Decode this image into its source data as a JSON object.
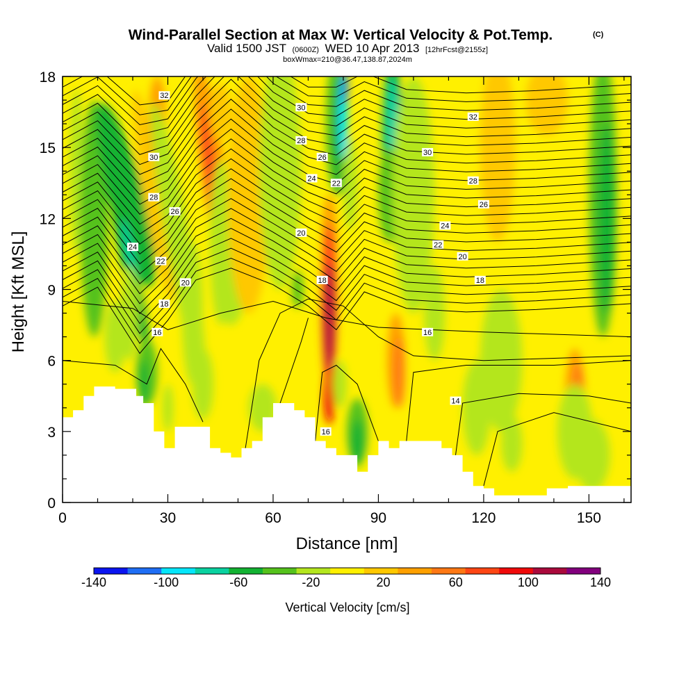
{
  "header": {
    "title": "Wind-Parallel Section at Max W: Vertical Velocity & Pot.Temp.",
    "title_mark": "(C)",
    "valid_a": "Valid 1500 JST",
    "valid_b": "(0600Z)",
    "valid_c": "WED 10 Apr 2013",
    "valid_d": "[12hrFcst@2155z]",
    "box": "boxWmax=210@36.47,138.87,2024m"
  },
  "chart_data": {
    "type": "heatmap",
    "xlabel": "Distance [nm]",
    "ylabel": "Height [Kft MSL]",
    "xlim": [
      0,
      162
    ],
    "ylim": [
      0,
      18
    ],
    "xticks": [
      "0",
      "30",
      "60",
      "90",
      "120",
      "150"
    ],
    "yticks": [
      "0",
      "3",
      "6",
      "9",
      "12",
      "15",
      "18"
    ],
    "colorbar": {
      "title": "Vertical Velocity [cm/s]",
      "labels": [
        "-140",
        "-100",
        "-60",
        "-20",
        "20",
        "60",
        "100",
        "140"
      ],
      "colors": [
        "#0a14f0",
        "#1f6ef5",
        "#05e6fa",
        "#0ad2a0",
        "#12b232",
        "#55c21c",
        "#b4e61e",
        "#fff000",
        "#ffc800",
        "#ffa000",
        "#ff7814",
        "#ff4614",
        "#f00a0a",
        "#aa0a3c",
        "#82007d"
      ]
    },
    "terrain_kft": [
      [
        0,
        3.6
      ],
      [
        3,
        3.6
      ],
      [
        3,
        3.9
      ],
      [
        6,
        3.9
      ],
      [
        6,
        4.5
      ],
      [
        9,
        4.5
      ],
      [
        9,
        4.9
      ],
      [
        15,
        4.9
      ],
      [
        15,
        4.8
      ],
      [
        21,
        4.8
      ],
      [
        21,
        4.5
      ],
      [
        23,
        4.5
      ],
      [
        23,
        4.2
      ],
      [
        26,
        4.2
      ],
      [
        26,
        3
      ],
      [
        29,
        3
      ],
      [
        29,
        2.3
      ],
      [
        32,
        2.3
      ],
      [
        32,
        3.2
      ],
      [
        42,
        3.2
      ],
      [
        42,
        2.3
      ],
      [
        45,
        2.3
      ],
      [
        45,
        2.1
      ],
      [
        48,
        2.1
      ],
      [
        48,
        1.9
      ],
      [
        51,
        1.9
      ],
      [
        51,
        2.3
      ],
      [
        54,
        2.3
      ],
      [
        54,
        2.6
      ],
      [
        57,
        2.6
      ],
      [
        57,
        3.6
      ],
      [
        60,
        3.6
      ],
      [
        60,
        4.2
      ],
      [
        66,
        4.2
      ],
      [
        66,
        3.9
      ],
      [
        69,
        3.9
      ],
      [
        69,
        3.6
      ],
      [
        72,
        3.6
      ],
      [
        72,
        2.6
      ],
      [
        75,
        2.6
      ],
      [
        75,
        2.3
      ],
      [
        78,
        2.3
      ],
      [
        78,
        2
      ],
      [
        84,
        2
      ],
      [
        84,
        1.3
      ],
      [
        87,
        1.3
      ],
      [
        87,
        2
      ],
      [
        90,
        2
      ],
      [
        90,
        2.6
      ],
      [
        93,
        2.6
      ],
      [
        93,
        2.3
      ],
      [
        96,
        2.3
      ],
      [
        96,
        2.6
      ],
      [
        108,
        2.6
      ],
      [
        108,
        2.3
      ],
      [
        111,
        2.3
      ],
      [
        111,
        2
      ],
      [
        114,
        2
      ],
      [
        114,
        1.3
      ],
      [
        117,
        1.3
      ],
      [
        117,
        0.7
      ],
      [
        120,
        0.7
      ],
      [
        120,
        0.6
      ],
      [
        123,
        0.6
      ],
      [
        123,
        0.3
      ],
      [
        138,
        0.3
      ],
      [
        138,
        0.6
      ],
      [
        144,
        0.6
      ],
      [
        144,
        0.7
      ],
      [
        162,
        0.7
      ]
    ],
    "isentropes_label_values": [
      "32",
      "30",
      "28",
      "26",
      "24",
      "22",
      "20",
      "18",
      "16",
      "14"
    ],
    "isentrope_labels": [
      {
        "text": "32",
        "x": 29,
        "y": 17.2
      },
      {
        "text": "30",
        "x": 26,
        "y": 14.6
      },
      {
        "text": "28",
        "x": 26,
        "y": 12.9
      },
      {
        "text": "26",
        "x": 32,
        "y": 12.3
      },
      {
        "text": "24",
        "x": 20,
        "y": 10.8
      },
      {
        "text": "22",
        "x": 28,
        "y": 10.2
      },
      {
        "text": "20",
        "x": 35,
        "y": 9.3
      },
      {
        "text": "18",
        "x": 29,
        "y": 8.4
      },
      {
        "text": "16",
        "x": 27,
        "y": 7.2
      },
      {
        "text": "30",
        "x": 68,
        "y": 16.7
      },
      {
        "text": "28",
        "x": 68,
        "y": 15.3
      },
      {
        "text": "26",
        "x": 74,
        "y": 14.6
      },
      {
        "text": "24",
        "x": 71,
        "y": 13.7
      },
      {
        "text": "22",
        "x": 78,
        "y": 13.5
      },
      {
        "text": "20",
        "x": 68,
        "y": 11.4
      },
      {
        "text": "18",
        "x": 74,
        "y": 9.4
      },
      {
        "text": "16",
        "x": 75,
        "y": 3
      },
      {
        "text": "32",
        "x": 117,
        "y": 16.3
      },
      {
        "text": "30",
        "x": 104,
        "y": 14.8
      },
      {
        "text": "28",
        "x": 117,
        "y": 13.6
      },
      {
        "text": "26",
        "x": 120,
        "y": 12.6
      },
      {
        "text": "24",
        "x": 109,
        "y": 11.7
      },
      {
        "text": "22",
        "x": 107,
        "y": 10.9
      },
      {
        "text": "20",
        "x": 114,
        "y": 10.4
      },
      {
        "text": "18",
        "x": 119,
        "y": 9.4
      },
      {
        "text": "16",
        "x": 104,
        "y": 7.2
      },
      {
        "text": "14",
        "x": 112,
        "y": 4.3
      }
    ]
  }
}
